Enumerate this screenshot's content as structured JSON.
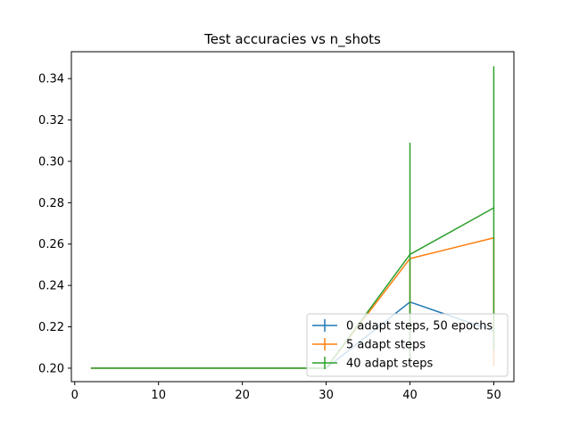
{
  "chart_data": {
    "type": "line",
    "title": "Test accuracies vs n_shots",
    "xlabel": "",
    "ylabel": "",
    "xlim": [
      -0.4,
      52.4
    ],
    "ylim": [
      0.1935,
      0.353
    ],
    "xticks": [
      0,
      10,
      20,
      30,
      40,
      50
    ],
    "yticks": [
      0.2,
      0.22,
      0.24,
      0.26,
      0.28,
      0.3,
      0.32,
      0.34
    ],
    "ytick_labels": [
      "0.20",
      "0.22",
      "0.24",
      "0.26",
      "0.28",
      "0.30",
      "0.32",
      "0.34"
    ],
    "grid": false,
    "legend_position": "lower-right",
    "x": [
      2,
      30,
      40,
      50
    ],
    "series": [
      {
        "name": "0 adapt steps, 50 epochs",
        "color": "#1f77b4",
        "values": [
          0.2,
          0.2,
          0.232,
          0.218
        ],
        "err_low": [
          0.2,
          0.2,
          0.202,
          0.201
        ],
        "err_high": [
          0.2,
          0.2,
          0.232,
          0.218
        ]
      },
      {
        "name": "5 adapt steps",
        "color": "#ff7f0e",
        "values": [
          0.2,
          0.2,
          0.253,
          0.263
        ],
        "err_low": [
          0.2,
          0.2,
          0.202,
          0.201
        ],
        "err_high": [
          0.2,
          0.2,
          0.253,
          0.263
        ]
      },
      {
        "name": "40 adapt steps",
        "color": "#2ca02c",
        "values": [
          0.2,
          0.2,
          0.255,
          0.2775
        ],
        "err_low": [
          0.2,
          0.2,
          0.202,
          0.209
        ],
        "err_high": [
          0.2,
          0.2,
          0.309,
          0.346
        ]
      }
    ]
  }
}
